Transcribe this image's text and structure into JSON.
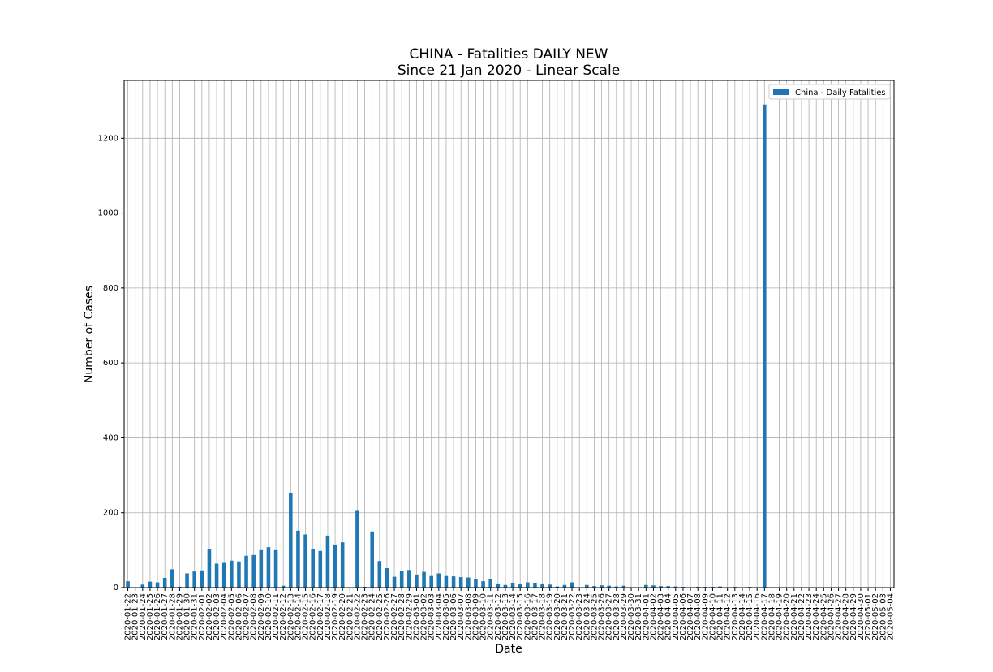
{
  "chart_data": {
    "type": "bar",
    "title": "CHINA - Fatalities DAILY NEW",
    "subtitle": "Since 21 Jan 2020 - Linear Scale",
    "x_label": "Date",
    "y_label": "Number of Cases",
    "legend_position": "upper right",
    "grid": true,
    "ylim": [
      0,
      1354.5
    ],
    "yticks": [
      0,
      200,
      400,
      600,
      800,
      1000,
      1200
    ],
    "categories": [
      "2020-01-22",
      "2020-01-23",
      "2020-01-24",
      "2020-01-25",
      "2020-01-26",
      "2020-01-27",
      "2020-01-28",
      "2020-01-29",
      "2020-01-30",
      "2020-01-31",
      "2020-02-01",
      "2020-02-02",
      "2020-02-03",
      "2020-02-04",
      "2020-02-05",
      "2020-02-06",
      "2020-02-07",
      "2020-02-08",
      "2020-02-09",
      "2020-02-10",
      "2020-02-11",
      "2020-02-12",
      "2020-02-13",
      "2020-02-14",
      "2020-02-15",
      "2020-02-16",
      "2020-02-17",
      "2020-02-18",
      "2020-02-19",
      "2020-02-20",
      "2020-02-21",
      "2020-02-22",
      "2020-02-23",
      "2020-02-24",
      "2020-02-25",
      "2020-02-26",
      "2020-02-27",
      "2020-02-28",
      "2020-02-29",
      "2020-03-01",
      "2020-03-02",
      "2020-03-03",
      "2020-03-04",
      "2020-03-05",
      "2020-03-06",
      "2020-03-07",
      "2020-03-08",
      "2020-03-09",
      "2020-03-10",
      "2020-03-11",
      "2020-03-12",
      "2020-03-13",
      "2020-03-14",
      "2020-03-15",
      "2020-03-16",
      "2020-03-17",
      "2020-03-18",
      "2020-03-19",
      "2020-03-20",
      "2020-03-21",
      "2020-03-22",
      "2020-03-23",
      "2020-03-24",
      "2020-03-25",
      "2020-03-26",
      "2020-03-27",
      "2020-03-28",
      "2020-03-29",
      "2020-03-30",
      "2020-03-31",
      "2020-04-01",
      "2020-04-02",
      "2020-04-03",
      "2020-04-04",
      "2020-04-05",
      "2020-04-06",
      "2020-04-07",
      "2020-04-08",
      "2020-04-09",
      "2020-04-10",
      "2020-04-11",
      "2020-04-12",
      "2020-04-13",
      "2020-04-14",
      "2020-04-15",
      "2020-04-16",
      "2020-04-17",
      "2020-04-18",
      "2020-04-19",
      "2020-04-20",
      "2020-04-21",
      "2020-04-22",
      "2020-04-23",
      "2020-04-24",
      "2020-04-25",
      "2020-04-26",
      "2020-04-27",
      "2020-04-28",
      "2020-04-29",
      "2020-04-30",
      "2020-05-01",
      "2020-05-02",
      "2020-05-03",
      "2020-05-04"
    ],
    "series": [
      {
        "name": "China - Daily Fatalities",
        "color": "#1f77b4",
        "values": [
          17,
          1,
          8,
          16,
          14,
          26,
          49,
          2,
          38,
          43,
          46,
          103,
          64,
          66,
          72,
          70,
          85,
          87,
          100,
          108,
          100,
          5,
          252,
          152,
          142,
          104,
          98,
          139,
          115,
          121,
          0,
          205,
          2,
          150,
          71,
          52,
          29,
          44,
          47,
          35,
          42,
          31,
          38,
          31,
          30,
          28,
          27,
          22,
          17,
          22,
          11,
          7,
          13,
          10,
          14,
          13,
          11,
          8,
          3,
          7,
          14,
          0,
          7,
          4,
          6,
          5,
          3,
          5,
          1,
          1,
          7,
          6,
          4,
          4,
          3,
          2,
          0,
          2,
          2,
          2,
          3,
          0,
          2,
          0,
          2,
          0,
          1290,
          0,
          0,
          0,
          0,
          0,
          0,
          0,
          0,
          1,
          0,
          0,
          0,
          0,
          0,
          0,
          0,
          0
        ]
      }
    ]
  }
}
